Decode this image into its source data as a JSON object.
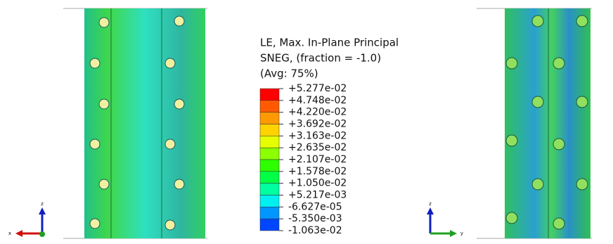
{
  "legend": {
    "title_lines": [
      "LE, Max. In-Plane Principal",
      "SNEG, (fraction = -1.0)",
      "(Avg: 75%)"
    ],
    "labels": [
      "+5.277e-02",
      "+4.748e-02",
      "+4.220e-02",
      "+3.692e-02",
      "+3.163e-02",
      "+2.635e-02",
      "+2.107e-02",
      "+1.578e-02",
      "+1.050e-02",
      "+5.217e-03",
      "-6.627e-05",
      "-5.350e-03",
      "-1.063e-02"
    ],
    "colors": [
      "#ff0000",
      "#ff5a00",
      "#ff9900",
      "#ffd200",
      "#e6ff00",
      "#8cff00",
      "#2eff00",
      "#00ff45",
      "#00ffa0",
      "#00f0f0",
      "#0096ff",
      "#0046ff",
      "#0000ff"
    ]
  },
  "triads": [
    {
      "vertical": "z",
      "horizontal": "x"
    },
    {
      "vertical": "z",
      "horizontal": "y"
    }
  ]
}
